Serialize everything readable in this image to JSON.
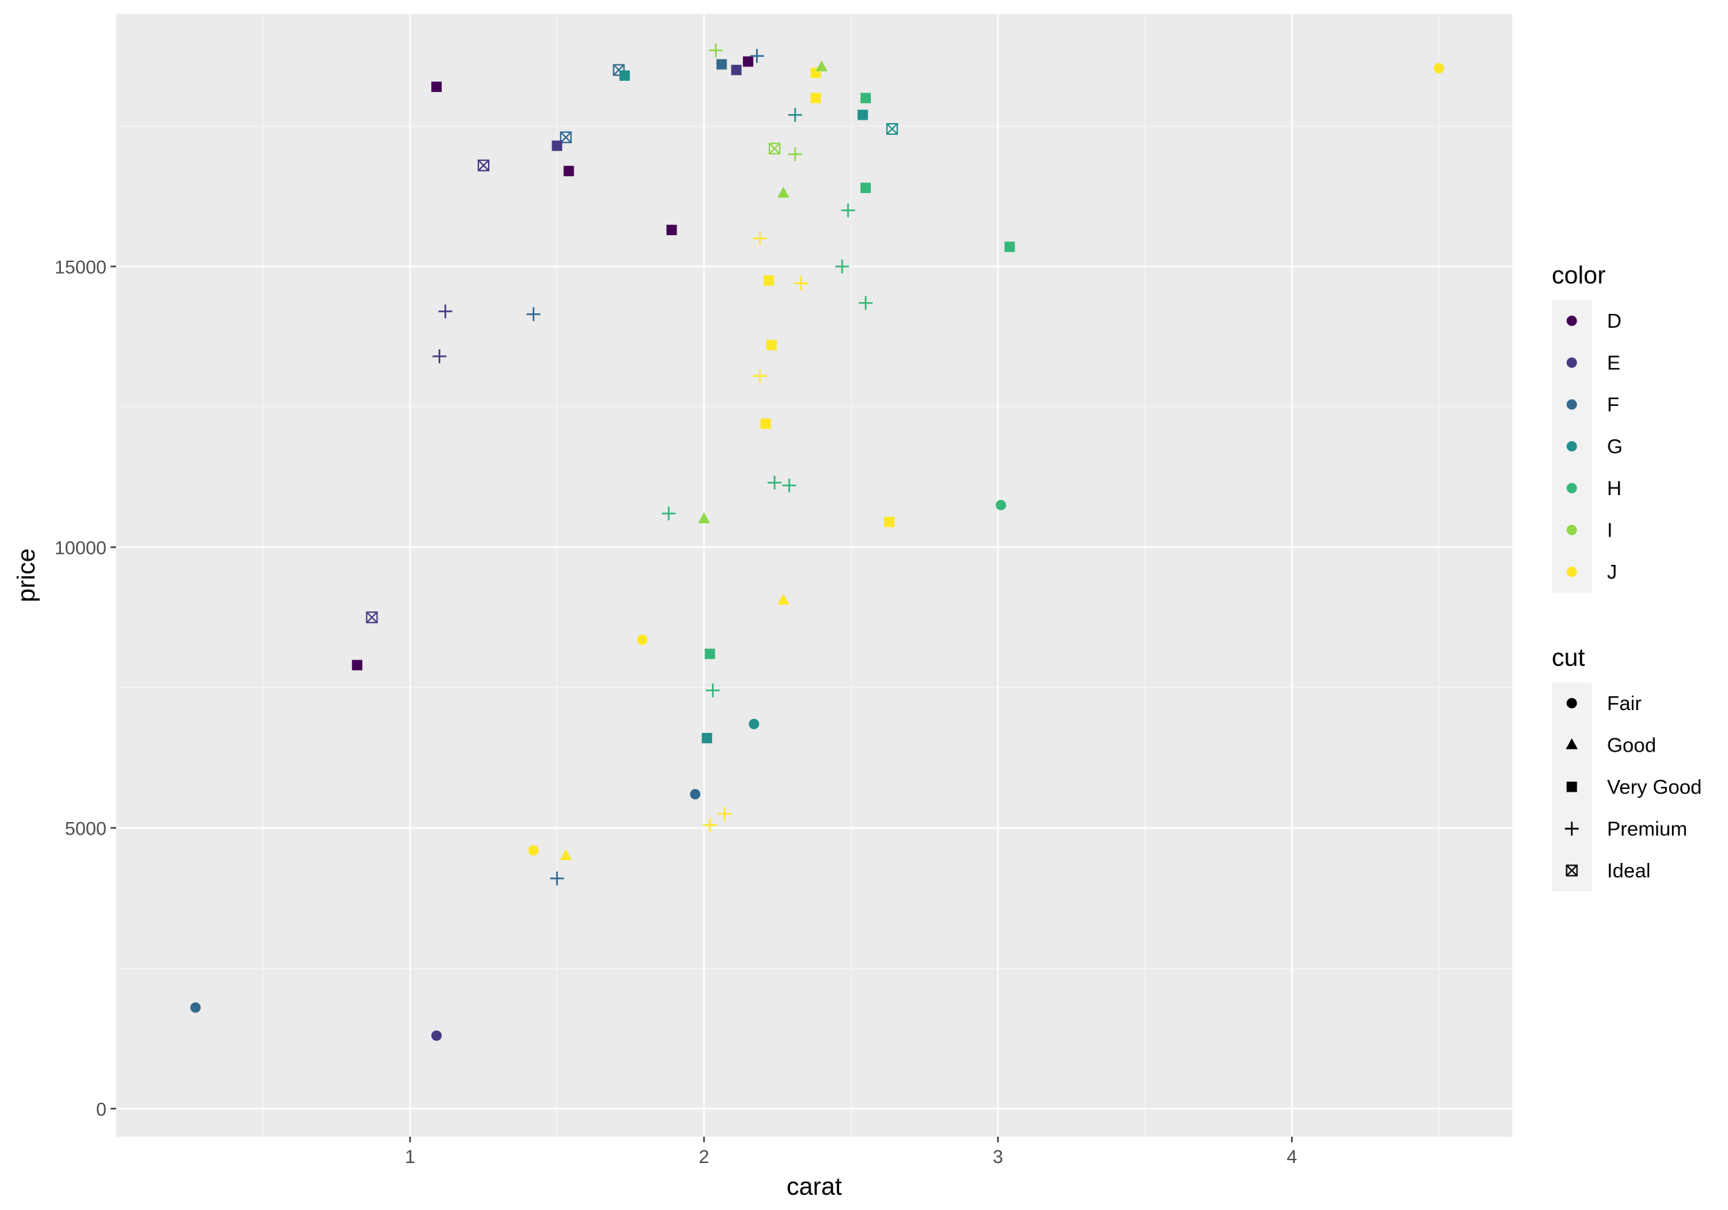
{
  "chart_data": {
    "type": "scatter",
    "xlabel": "carat",
    "ylabel": "price",
    "xlim": [
      0.0,
      4.75
    ],
    "ylim": [
      -500,
      19500
    ],
    "x_ticks": [
      "1",
      "2",
      "3",
      "4"
    ],
    "x_tick_values": [
      1,
      2,
      3,
      4
    ],
    "y_ticks": [
      "0",
      "5000",
      "10000",
      "15000"
    ],
    "y_tick_values": [
      0,
      5000,
      10000,
      15000
    ],
    "grid": true,
    "legend_position": "right",
    "legends": {
      "color": {
        "title": "color",
        "entries": [
          {
            "label": "D",
            "color": "#440154"
          },
          {
            "label": "E",
            "color": "#443A83"
          },
          {
            "label": "F",
            "color": "#31688E"
          },
          {
            "label": "G",
            "color": "#21908C"
          },
          {
            "label": "H",
            "color": "#35B779"
          },
          {
            "label": "I",
            "color": "#8FD744"
          },
          {
            "label": "J",
            "color": "#FDE725"
          }
        ]
      },
      "cut": {
        "title": "cut",
        "entries": [
          {
            "label": "Fair",
            "shape": "circle"
          },
          {
            "label": "Good",
            "shape": "triangle"
          },
          {
            "label": "Very Good",
            "shape": "square"
          },
          {
            "label": "Premium",
            "shape": "plus"
          },
          {
            "label": "Ideal",
            "shape": "boxed-x"
          }
        ]
      }
    },
    "series_columns": [
      "carat",
      "price",
      "color",
      "cut"
    ],
    "points": [
      [
        4.5,
        18530,
        "J",
        "Fair"
      ],
      [
        3.01,
        10750,
        "H",
        "Fair"
      ],
      [
        3.04,
        15350,
        "H",
        "Very Good"
      ],
      [
        2.63,
        10450,
        "J",
        "Very Good"
      ],
      [
        2.27,
        9050,
        "J",
        "Good"
      ],
      [
        1.09,
        18200,
        "D",
        "Very Good"
      ],
      [
        1.25,
        16800,
        "E",
        "Ideal"
      ],
      [
        2.64,
        17450,
        "G",
        "Ideal"
      ],
      [
        2.55,
        18000,
        "H",
        "Very Good"
      ],
      [
        2.54,
        17700,
        "G",
        "Very Good"
      ],
      [
        2.55,
        16400,
        "H",
        "Very Good"
      ],
      [
        2.49,
        16000,
        "H",
        "Premium"
      ],
      [
        2.47,
        15000,
        "H",
        "Premium"
      ],
      [
        2.55,
        14350,
        "H",
        "Premium"
      ],
      [
        2.38,
        18450,
        "J",
        "Very Good"
      ],
      [
        2.4,
        18550,
        "I",
        "Good"
      ],
      [
        2.38,
        18000,
        "J",
        "Very Good"
      ],
      [
        2.31,
        17700,
        "G",
        "Premium"
      ],
      [
        1.71,
        18500,
        "F",
        "Ideal"
      ],
      [
        1.73,
        18400,
        "G",
        "Very Good"
      ],
      [
        1.53,
        17300,
        "F",
        "Ideal"
      ],
      [
        1.5,
        17150,
        "E",
        "Very Good"
      ],
      [
        1.54,
        16700,
        "D",
        "Very Good"
      ],
      [
        1.89,
        15650,
        "D",
        "Very Good"
      ],
      [
        1.42,
        14150,
        "F",
        "Premium"
      ],
      [
        1.12,
        14200,
        "E",
        "Premium"
      ],
      [
        1.1,
        13400,
        "E",
        "Premium"
      ],
      [
        0.82,
        7900,
        "D",
        "Very Good"
      ],
      [
        0.87,
        8750,
        "E",
        "Ideal"
      ],
      [
        1.09,
        1300,
        "E",
        "Fair"
      ],
      [
        0.27,
        1800,
        "F",
        "Fair"
      ],
      [
        1.97,
        5600,
        "F",
        "Fair"
      ],
      [
        2.17,
        6850,
        "G",
        "Fair"
      ],
      [
        2.02,
        5050,
        "J",
        "Premium"
      ],
      [
        2.07,
        5250,
        "J",
        "Premium"
      ],
      [
        1.5,
        4100,
        "F",
        "Premium"
      ],
      [
        1.53,
        4500,
        "J",
        "Good"
      ],
      [
        1.42,
        4600,
        "J",
        "Fair"
      ],
      [
        1.79,
        8350,
        "J",
        "Fair"
      ],
      [
        1.88,
        10600,
        "H",
        "Premium"
      ],
      [
        2.24,
        11150,
        "H",
        "Premium"
      ],
      [
        2.29,
        11100,
        "H",
        "Premium"
      ],
      [
        2.02,
        8100,
        "H",
        "Very Good"
      ],
      [
        2.03,
        7450,
        "H",
        "Premium"
      ],
      [
        2.01,
        6600,
        "G",
        "Very Good"
      ],
      [
        2.0,
        10500,
        "I",
        "Good"
      ],
      [
        2.21,
        12200,
        "J",
        "Very Good"
      ],
      [
        2.23,
        13600,
        "J",
        "Very Good"
      ],
      [
        2.19,
        13050,
        "J",
        "Premium"
      ],
      [
        2.33,
        14700,
        "J",
        "Premium"
      ],
      [
        2.22,
        14750,
        "J",
        "Very Good"
      ],
      [
        2.19,
        15500,
        "J",
        "Premium"
      ],
      [
        2.27,
        16300,
        "I",
        "Good"
      ],
      [
        2.24,
        17100,
        "I",
        "Ideal"
      ],
      [
        2.31,
        17000,
        "I",
        "Premium"
      ],
      [
        2.04,
        18850,
        "I",
        "Premium"
      ],
      [
        2.06,
        18600,
        "F",
        "Very Good"
      ],
      [
        2.15,
        18650,
        "D",
        "Very Good"
      ],
      [
        2.18,
        18750,
        "F",
        "Premium"
      ],
      [
        2.11,
        18500,
        "E",
        "Very Good"
      ]
    ]
  }
}
